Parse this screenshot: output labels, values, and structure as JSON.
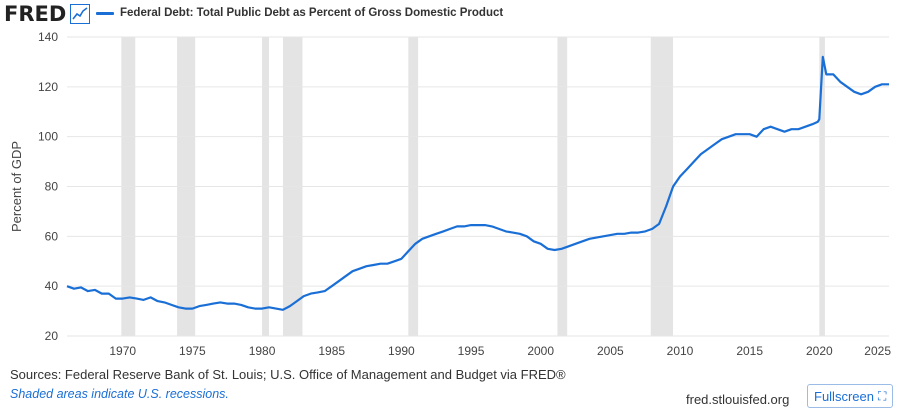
{
  "header": {
    "logo_text": "FRED",
    "logo_icon": "line-chart-icon",
    "legend_label": "Federal Debt: Total Public Debt as Percent of Gross Domestic Product"
  },
  "footer": {
    "sources": "Sources: Federal Reserve Bank of St. Louis; U.S. Office of Management and Budget via FRED®",
    "recession_note": "Shaded areas indicate U.S. recessions.",
    "site": "fred.stlouisfed.org",
    "fullscreen_label": "Fullscreen",
    "fullscreen_icon": "expand-icon"
  },
  "colors": {
    "series": "#1a6fd6",
    "recession": "#e4e4e4",
    "grid": "#e6e6e6"
  },
  "chart_data": {
    "type": "line",
    "ylabel": "Percent of GDP",
    "xlim": [
      1966,
      2025
    ],
    "ylim": [
      20,
      140
    ],
    "yticks": [
      20,
      40,
      60,
      80,
      100,
      120,
      140
    ],
    "xticks": [
      1970,
      1975,
      1980,
      1985,
      1990,
      1995,
      2000,
      2005,
      2010,
      2015,
      2020,
      2025
    ],
    "grid": true,
    "recessions": [
      [
        1969.9,
        1970.9
      ],
      [
        1973.9,
        1975.2
      ],
      [
        1980.0,
        1980.5
      ],
      [
        1981.5,
        1982.9
      ],
      [
        1990.5,
        1991.2
      ],
      [
        2001.2,
        2001.9
      ],
      [
        2007.9,
        2009.5
      ],
      [
        2020.0,
        2020.4
      ]
    ],
    "series": [
      {
        "name": "Federal Debt: Total Public Debt as Percent of Gross Domestic Product",
        "points": [
          [
            1966.0,
            40
          ],
          [
            1966.5,
            39
          ],
          [
            1967.0,
            39.5
          ],
          [
            1967.5,
            38
          ],
          [
            1968.0,
            38.5
          ],
          [
            1968.5,
            37
          ],
          [
            1969.0,
            37
          ],
          [
            1969.5,
            35
          ],
          [
            1970.0,
            35
          ],
          [
            1970.5,
            35.5
          ],
          [
            1971.0,
            35
          ],
          [
            1971.5,
            34.5
          ],
          [
            1972.0,
            35.5
          ],
          [
            1972.5,
            34
          ],
          [
            1973.0,
            33.5
          ],
          [
            1973.5,
            32.5
          ],
          [
            1974.0,
            31.5
          ],
          [
            1974.5,
            31
          ],
          [
            1975.0,
            31
          ],
          [
            1975.5,
            32
          ],
          [
            1976.0,
            32.5
          ],
          [
            1976.5,
            33
          ],
          [
            1977.0,
            33.5
          ],
          [
            1977.5,
            33
          ],
          [
            1978.0,
            33
          ],
          [
            1978.5,
            32.5
          ],
          [
            1979.0,
            31.5
          ],
          [
            1979.5,
            31
          ],
          [
            1980.0,
            31
          ],
          [
            1980.5,
            31.5
          ],
          [
            1981.0,
            31
          ],
          [
            1981.5,
            30.5
          ],
          [
            1982.0,
            32
          ],
          [
            1982.5,
            34
          ],
          [
            1983.0,
            36
          ],
          [
            1983.5,
            37
          ],
          [
            1984.0,
            37.5
          ],
          [
            1984.5,
            38
          ],
          [
            1985.0,
            40
          ],
          [
            1985.5,
            42
          ],
          [
            1986.0,
            44
          ],
          [
            1986.5,
            46
          ],
          [
            1987.0,
            47
          ],
          [
            1987.5,
            48
          ],
          [
            1988.0,
            48.5
          ],
          [
            1988.5,
            49
          ],
          [
            1989.0,
            49
          ],
          [
            1989.5,
            50
          ],
          [
            1990.0,
            51
          ],
          [
            1990.5,
            54
          ],
          [
            1991.0,
            57
          ],
          [
            1991.5,
            59
          ],
          [
            1992.0,
            60
          ],
          [
            1992.5,
            61
          ],
          [
            1993.0,
            62
          ],
          [
            1993.5,
            63
          ],
          [
            1994.0,
            64
          ],
          [
            1994.5,
            64
          ],
          [
            1995.0,
            64.5
          ],
          [
            1995.5,
            64.5
          ],
          [
            1996.0,
            64.5
          ],
          [
            1996.5,
            64
          ],
          [
            1997.0,
            63
          ],
          [
            1997.5,
            62
          ],
          [
            1998.0,
            61.5
          ],
          [
            1998.5,
            61
          ],
          [
            1999.0,
            60
          ],
          [
            1999.5,
            58
          ],
          [
            2000.0,
            57
          ],
          [
            2000.5,
            55
          ],
          [
            2001.0,
            54.5
          ],
          [
            2001.5,
            55
          ],
          [
            2002.0,
            56
          ],
          [
            2002.5,
            57
          ],
          [
            2003.0,
            58
          ],
          [
            2003.5,
            59
          ],
          [
            2004.0,
            59.5
          ],
          [
            2004.5,
            60
          ],
          [
            2005.0,
            60.5
          ],
          [
            2005.5,
            61
          ],
          [
            2006.0,
            61
          ],
          [
            2006.5,
            61.5
          ],
          [
            2007.0,
            61.5
          ],
          [
            2007.5,
            62
          ],
          [
            2008.0,
            63
          ],
          [
            2008.5,
            65
          ],
          [
            2009.0,
            72
          ],
          [
            2009.5,
            80
          ],
          [
            2010.0,
            84
          ],
          [
            2010.5,
            87
          ],
          [
            2011.0,
            90
          ],
          [
            2011.5,
            93
          ],
          [
            2012.0,
            95
          ],
          [
            2012.5,
            97
          ],
          [
            2013.0,
            99
          ],
          [
            2013.5,
            100
          ],
          [
            2014.0,
            101
          ],
          [
            2014.5,
            101
          ],
          [
            2015.0,
            101
          ],
          [
            2015.5,
            100
          ],
          [
            2016.0,
            103
          ],
          [
            2016.5,
            104
          ],
          [
            2017.0,
            103
          ],
          [
            2017.5,
            102
          ],
          [
            2018.0,
            103
          ],
          [
            2018.5,
            103
          ],
          [
            2019.0,
            104
          ],
          [
            2019.5,
            105
          ],
          [
            2019.9,
            106
          ],
          [
            2020.0,
            107
          ],
          [
            2020.25,
            132
          ],
          [
            2020.5,
            125
          ],
          [
            2021.0,
            125
          ],
          [
            2021.5,
            122
          ],
          [
            2022.0,
            120
          ],
          [
            2022.5,
            118
          ],
          [
            2023.0,
            117
          ],
          [
            2023.5,
            118
          ],
          [
            2024.0,
            120
          ],
          [
            2024.5,
            121
          ],
          [
            2025.0,
            121
          ]
        ]
      }
    ]
  }
}
